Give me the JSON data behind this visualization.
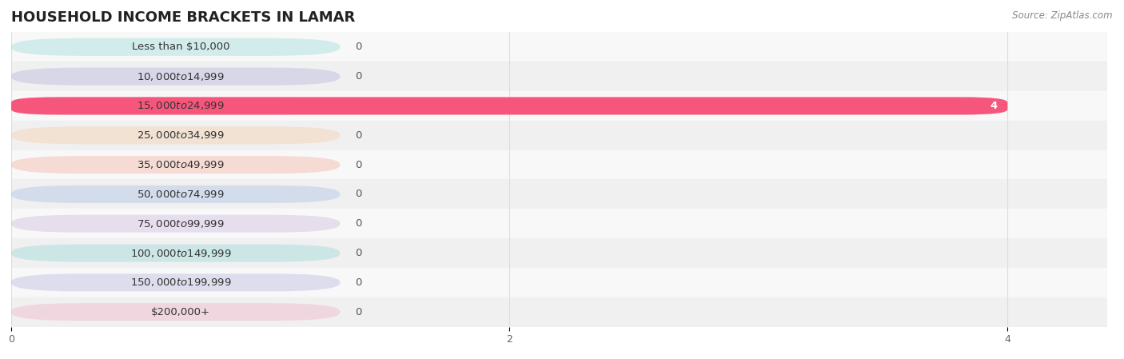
{
  "title": "HOUSEHOLD INCOME BRACKETS IN LAMAR",
  "source": "Source: ZipAtlas.com",
  "categories": [
    "Less than $10,000",
    "$10,000 to $14,999",
    "$15,000 to $24,999",
    "$25,000 to $34,999",
    "$35,000 to $49,999",
    "$50,000 to $74,999",
    "$75,000 to $99,999",
    "$100,000 to $149,999",
    "$150,000 to $199,999",
    "$200,000+"
  ],
  "values": [
    0,
    0,
    4,
    0,
    0,
    0,
    0,
    0,
    0,
    0
  ],
  "bar_colors": [
    "#72cece",
    "#9898d4",
    "#f7567c",
    "#f5c08a",
    "#f0907a",
    "#8aaae0",
    "#b898d4",
    "#72cece",
    "#9898d4",
    "#f098b4"
  ],
  "xlim": [
    0,
    4.4
  ],
  "xticks": [
    0,
    2,
    4
  ],
  "background_color": "#ffffff",
  "title_fontsize": 13,
  "label_fontsize": 9.5,
  "tick_fontsize": 9,
  "source_fontsize": 8.5,
  "bar_height": 0.6,
  "pill_alpha": 0.28,
  "row_colors": [
    "#f8f8f8",
    "#f0f0f0"
  ]
}
